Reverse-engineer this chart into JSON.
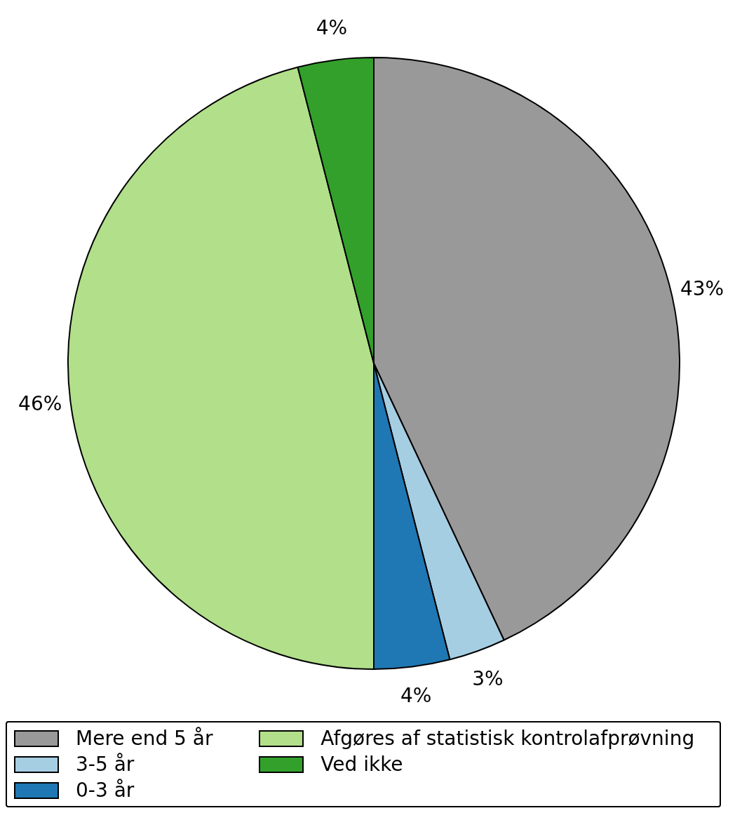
{
  "chart_data": {
    "type": "pie",
    "categories": [
      "Mere end 5 år",
      "3-5 år",
      "0-3 år",
      "Afgøres af statistisk kontrolafprøvning",
      "Ved ikke"
    ],
    "values": [
      43,
      3,
      4,
      46,
      4
    ],
    "value_labels": [
      "43%",
      "3%",
      "4%",
      "46%",
      "4%"
    ],
    "colors": [
      "#999999",
      "#a6cee3",
      "#1f78b4",
      "#b2df8a",
      "#33a02c"
    ],
    "legend": "bottom"
  }
}
